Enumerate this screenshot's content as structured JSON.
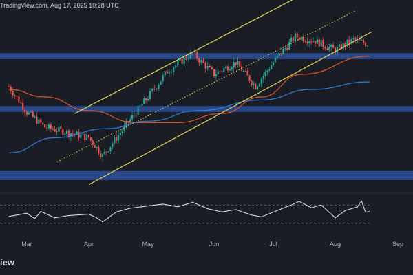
{
  "header": {
    "source_text": "TradingView.com, Aug 17, 2025 10:28 UTC"
  },
  "footer": {
    "brand_text": "iew"
  },
  "colors": {
    "background": "#1b1d24",
    "candle_up": "#26a69a",
    "candle_down": "#ef5350",
    "zone_fill": "#2a4b8d",
    "channel": "#e6d85c",
    "ma_fast": "#e0562a",
    "ma_slow": "#2f7fe0",
    "rsi": "#e8ecf5"
  },
  "chart_data": [
    {
      "type": "candlestick",
      "title": "",
      "x_axis": {
        "tick_labels": [
          "Mar",
          "Apr",
          "May",
          "Jun",
          "Jul",
          "Aug",
          "Sep"
        ]
      },
      "price_path": [
        [
          "2025-02-20",
          0.62
        ],
        [
          "2025-03-01",
          0.45
        ],
        [
          "2025-03-10",
          0.35
        ],
        [
          "2025-03-20",
          0.32
        ],
        [
          "2025-04-01",
          0.28
        ],
        [
          "2025-04-08",
          0.16
        ],
        [
          "2025-04-22",
          0.4
        ],
        [
          "2025-05-01",
          0.55
        ],
        [
          "2025-05-10",
          0.72
        ],
        [
          "2025-05-22",
          0.84
        ],
        [
          "2025-06-01",
          0.7
        ],
        [
          "2025-06-12",
          0.78
        ],
        [
          "2025-06-22",
          0.62
        ],
        [
          "2025-07-01",
          0.78
        ],
        [
          "2025-07-12",
          0.95
        ],
        [
          "2025-07-22",
          0.92
        ],
        [
          "2025-08-01",
          0.86
        ],
        [
          "2025-08-10",
          0.93
        ],
        [
          "2025-08-17",
          0.9
        ]
      ],
      "horizontal_zones": [
        {
          "name": "upper-zone",
          "y_range": [
            0.8,
            0.84
          ]
        },
        {
          "name": "middle-zone",
          "y_range": [
            0.45,
            0.49
          ]
        },
        {
          "name": "lower-zone",
          "y_range": [
            0.0,
            0.06
          ]
        }
      ],
      "ascending_channel": {
        "upper": [
          [
            "2025-03-25",
            0.44
          ],
          [
            "2025-07-19",
            1.25
          ]
        ],
        "middle_dotted": [
          [
            "2025-03-16",
            0.12
          ],
          [
            "2025-08-11",
            1.12
          ]
        ],
        "lower": [
          [
            "2025-04-01",
            -0.03
          ],
          [
            "2025-08-19",
            0.98
          ]
        ]
      },
      "moving_averages": [
        {
          "name": "",
          "role": "ma_fast",
          "points": [
            [
              "2025-02-20",
              0.6
            ],
            [
              "2025-03-10",
              0.55
            ],
            [
              "2025-04-01",
              0.46
            ],
            [
              "2025-04-25",
              0.38
            ],
            [
              "2025-05-15",
              0.38
            ],
            [
              "2025-06-05",
              0.44
            ],
            [
              "2025-06-25",
              0.55
            ],
            [
              "2025-07-15",
              0.7
            ],
            [
              "2025-08-18",
              0.82
            ]
          ]
        },
        {
          "name": "",
          "role": "ma_slow",
          "points": [
            [
              "2025-02-20",
              0.18
            ],
            [
              "2025-03-15",
              0.28
            ],
            [
              "2025-04-10",
              0.34
            ],
            [
              "2025-05-01",
              0.39
            ],
            [
              "2025-05-25",
              0.46
            ],
            [
              "2025-06-25",
              0.53
            ],
            [
              "2025-07-20",
              0.6
            ],
            [
              "2025-08-18",
              0.65
            ]
          ]
        }
      ],
      "rsi_panel": {
        "guide_levels": [
          70,
          30
        ],
        "series": [
          [
            "2025-02-20",
            45
          ],
          [
            "2025-03-01",
            52
          ],
          [
            "2025-03-05",
            40
          ],
          [
            "2025-03-08",
            56
          ],
          [
            "2025-03-15",
            42
          ],
          [
            "2025-03-22",
            47
          ],
          [
            "2025-04-01",
            50
          ],
          [
            "2025-04-05",
            42
          ],
          [
            "2025-04-08",
            33
          ],
          [
            "2025-04-15",
            55
          ],
          [
            "2025-04-22",
            63
          ],
          [
            "2025-05-01",
            68
          ],
          [
            "2025-05-08",
            72
          ],
          [
            "2025-05-15",
            66
          ],
          [
            "2025-05-22",
            76
          ],
          [
            "2025-05-29",
            62
          ],
          [
            "2025-06-05",
            55
          ],
          [
            "2025-06-12",
            60
          ],
          [
            "2025-06-20",
            48
          ],
          [
            "2025-06-25",
            44
          ],
          [
            "2025-07-03",
            58
          ],
          [
            "2025-07-10",
            70
          ],
          [
            "2025-07-14",
            78
          ],
          [
            "2025-07-20",
            64
          ],
          [
            "2025-07-25",
            70
          ],
          [
            "2025-08-01",
            42
          ],
          [
            "2025-08-06",
            58
          ],
          [
            "2025-08-12",
            66
          ],
          [
            "2025-08-14",
            79
          ],
          [
            "2025-08-16",
            54
          ],
          [
            "2025-08-18",
            56
          ]
        ]
      }
    }
  ]
}
